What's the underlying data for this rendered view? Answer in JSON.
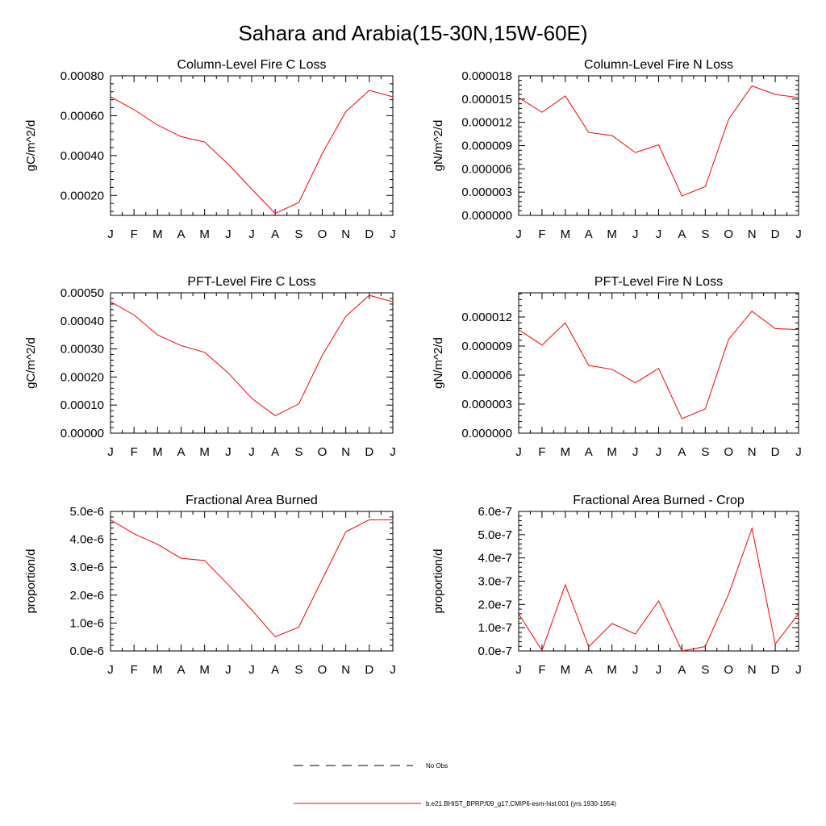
{
  "figure_title": "Sahara and Arabia(15-30N,15W-60E)",
  "legend": [
    {
      "label": "No Obs",
      "color": "#000000",
      "dash": "dashed"
    },
    {
      "label": "b.e21.BHIST_BPRP.f09_g17.CMIP6-esm-hist.001 (yrs 1930-1954)",
      "color": "#ff0000",
      "dash": "solid"
    }
  ],
  "chart_data": [
    {
      "type": "line",
      "title": "Column-Level Fire C Loss",
      "ylabel": "gC/m^2/d",
      "x": [
        "J",
        "F",
        "M",
        "A",
        "M",
        "J",
        "J",
        "A",
        "S",
        "O",
        "N",
        "D",
        "J"
      ],
      "ylim": [
        0.0001,
        0.0008
      ],
      "yticks": [
        0.0002,
        0.0004,
        0.0006,
        0.0008
      ],
      "yticklabels": [
        "0.00020",
        "0.00040",
        "0.00060",
        "0.00080"
      ],
      "series": [
        {
          "color": "#ff0000",
          "values": [
            0.000695,
            0.00063,
            0.000553,
            0.000495,
            0.000468,
            0.000357,
            0.000232,
            0.00011,
            0.000164,
            0.00041,
            0.00062,
            0.000727,
            0.000695
          ]
        }
      ]
    },
    {
      "type": "line",
      "title": "Column-Level Fire N Loss",
      "ylabel": "gN/m^2/d",
      "x": [
        "J",
        "F",
        "M",
        "A",
        "M",
        "J",
        "J",
        "A",
        "S",
        "O",
        "N",
        "D",
        "J"
      ],
      "ylim": [
        0,
        1.8e-05
      ],
      "yticks": [
        0,
        3e-06,
        6e-06,
        9e-06,
        1.2e-05,
        1.5e-05,
        1.8e-05
      ],
      "yticklabels": [
        "0.000000",
        "0.000003",
        "0.000006",
        "0.000009",
        "0.000012",
        "0.000015",
        "0.000018"
      ],
      "series": [
        {
          "color": "#ff0000",
          "values": [
            1.52e-05,
            1.33e-05,
            1.54e-05,
            1.07e-05,
            1.03e-05,
            8.1e-06,
            9.1e-06,
            2.5e-06,
            3.7e-06,
            1.24e-05,
            1.67e-05,
            1.56e-05,
            1.52e-05
          ]
        }
      ]
    },
    {
      "type": "line",
      "title": "PFT-Level Fire C Loss",
      "ylabel": "gC/m^2/d",
      "x": [
        "J",
        "F",
        "M",
        "A",
        "M",
        "J",
        "J",
        "A",
        "S",
        "O",
        "N",
        "D",
        "J"
      ],
      "ylim": [
        0,
        0.0005
      ],
      "yticks": [
        0,
        0.0001,
        0.0002,
        0.0003,
        0.0004,
        0.0005
      ],
      "yticklabels": [
        "0.00000",
        "0.00010",
        "0.00020",
        "0.00030",
        "0.00040",
        "0.00050"
      ],
      "series": [
        {
          "color": "#ff0000",
          "values": [
            0.000468,
            0.000421,
            0.00035,
            0.000312,
            0.000288,
            0.000215,
            0.000124,
            6.2e-05,
            0.000104,
            0.000277,
            0.000416,
            0.000491,
            0.000468
          ]
        }
      ]
    },
    {
      "type": "line",
      "title": "PFT-Level Fire N Loss",
      "ylabel": "gN/m^2/d",
      "x": [
        "J",
        "F",
        "M",
        "A",
        "M",
        "J",
        "J",
        "A",
        "S",
        "O",
        "N",
        "D",
        "J"
      ],
      "ylim": [
        0,
        1.45e-05
      ],
      "yticks": [
        0,
        3e-06,
        6e-06,
        9e-06,
        1.2e-05
      ],
      "yticklabels": [
        "0.000000",
        "0.000003",
        "0.000006",
        "0.000009",
        "0.000012"
      ],
      "series": [
        {
          "color": "#ff0000",
          "values": [
            1.07e-05,
            9.1e-06,
            1.14e-05,
            7e-06,
            6.6e-06,
            5.2e-06,
            6.7e-06,
            1.5e-06,
            2.5e-06,
            9.7e-06,
            1.26e-05,
            1.08e-05,
            1.07e-05
          ]
        }
      ]
    },
    {
      "type": "line",
      "title": "Fractional Area Burned",
      "ylabel": "proportion/d",
      "x": [
        "J",
        "F",
        "M",
        "A",
        "M",
        "J",
        "J",
        "A",
        "S",
        "O",
        "N",
        "D",
        "J"
      ],
      "ylim": [
        0,
        5e-06
      ],
      "yticks": [
        0,
        1e-06,
        2e-06,
        3e-06,
        4e-06,
        5e-06
      ],
      "yticklabels": [
        "0.0e-6",
        "1.0e-6",
        "2.0e-6",
        "3.0e-6",
        "4.0e-6",
        "5.0e-6"
      ],
      "series": [
        {
          "color": "#ff0000",
          "values": [
            4.7e-06,
            4.2e-06,
            3.82e-06,
            3.32e-06,
            3.24e-06,
            2.38e-06,
            1.47e-06,
            5.1e-07,
            8.5e-07,
            2.57e-06,
            4.27e-06,
            4.7e-06,
            4.7e-06
          ]
        }
      ]
    },
    {
      "type": "line",
      "title": "Fractional Area Burned - Crop",
      "ylabel": "proportion/d",
      "x": [
        "J",
        "F",
        "M",
        "A",
        "M",
        "J",
        "J",
        "A",
        "S",
        "O",
        "N",
        "D",
        "J"
      ],
      "ylim": [
        0,
        6e-07
      ],
      "yticks": [
        0,
        1e-07,
        2e-07,
        3e-07,
        4e-07,
        5e-07,
        6e-07
      ],
      "yticklabels": [
        "0.0e-7",
        "1.0e-7",
        "2.0e-7",
        "3.0e-7",
        "4.0e-7",
        "5.0e-7",
        "6.0e-7"
      ],
      "series": [
        {
          "color": "#ff0000",
          "values": [
            1.6e-07,
            2e-09,
            2.85e-07,
            1.8e-08,
            1.18e-07,
            7.3e-08,
            2.15e-07,
            0.0,
            1.9e-08,
            2.45e-07,
            5.27e-07,
            3e-08,
            1.6e-07
          ]
        }
      ]
    }
  ]
}
